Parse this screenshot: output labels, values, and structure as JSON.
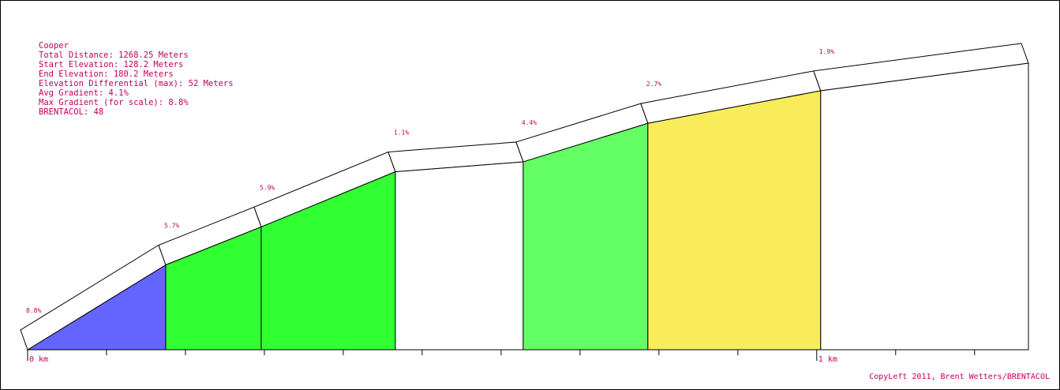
{
  "chart_data": {
    "type": "profile",
    "info": [
      "Cooper",
      "Total Distance: 1268.25 Meters",
      "Start Elevation: 128.2 Meters",
      "End Elevation: 180.2 Meters",
      "Elevation Differential (max): 52 Meters",
      "Avg Gradient: 4.1%",
      "Max Gradient (for scale): 8.8%",
      "BRENTACOL: 48"
    ],
    "x": [
      0,
      175,
      296,
      466,
      628,
      786,
      1005,
      1268.25
    ],
    "elevation": [
      128.2,
      143.6,
      150.5,
      160.5,
      162.3,
      169.3,
      175.2,
      180.2
    ],
    "gradients": [
      8.8,
      5.7,
      5.9,
      1.1,
      4.4,
      2.7,
      1.9
    ],
    "value_labels": [
      "8.8%",
      "5.7%",
      "5.9%",
      "1.1%",
      "4.4%",
      "2.7%",
      "1.9%"
    ],
    "colors": [
      "#6464ff",
      "#32ff32",
      "#32ff32",
      "#ffffff",
      "#64ff64",
      "#f8ec5a",
      "#ffffff"
    ],
    "xlim": [
      0,
      1268.25
    ],
    "ylim": [
      128.2,
      180.2
    ],
    "xticks": [
      {
        "value": 0,
        "label": "0 km"
      },
      {
        "value": 1000,
        "label": "1 km"
      }
    ],
    "xminor": [
      100,
      200,
      300,
      400,
      500,
      600,
      700,
      800,
      900,
      1100,
      1200
    ],
    "footer": "CopyLeft 2011, Brent Wetters/BRENTACOL"
  }
}
